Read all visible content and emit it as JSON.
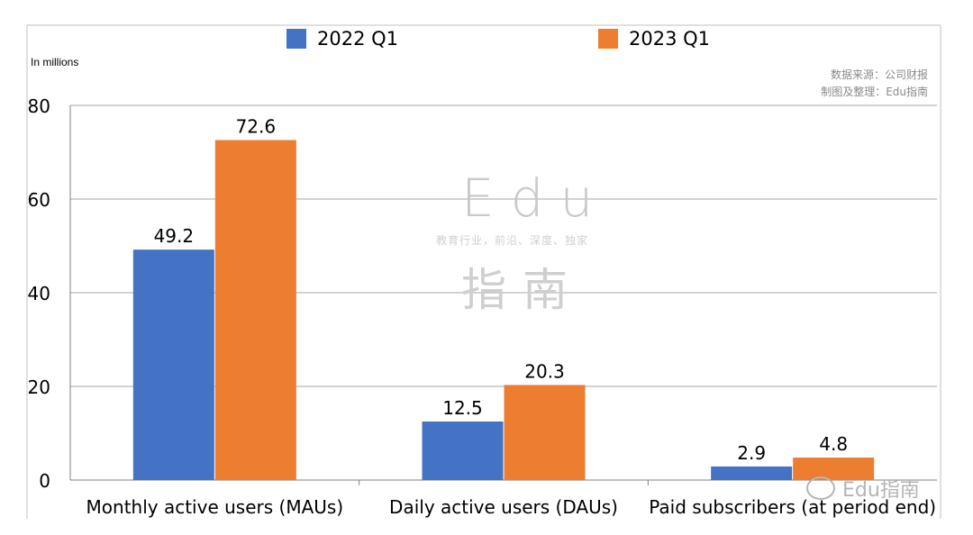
{
  "unit_label": "In millions",
  "source": {
    "line1": "数据来源：公司财报",
    "line2": "制图及整理：Edu指南"
  },
  "watermark": {
    "brand": "Edu",
    "tagline": "教育行业，前沿、深度、独家",
    "chinese": "指南",
    "corner": "Edu指南"
  },
  "legend": {
    "series1": "2022 Q1",
    "series2": "2023 Q1"
  },
  "colors": {
    "series1": "#4472c4",
    "series2": "#ed7d31",
    "grid": "#a6a6a6",
    "axis": "#808080"
  },
  "chart_data": {
    "type": "bar",
    "title": "",
    "xlabel": "",
    "ylabel": "In millions",
    "ylim": [
      0,
      80
    ],
    "yticks": [
      0,
      20,
      40,
      60,
      80
    ],
    "grid": true,
    "legend_position": "top",
    "categories": [
      "Monthly active users (MAUs)",
      "Daily active users (DAUs)",
      "Paid subscribers (at period end)"
    ],
    "series": [
      {
        "name": "2022 Q1",
        "values": [
          49.2,
          12.5,
          2.9
        ]
      },
      {
        "name": "2023 Q1",
        "values": [
          72.6,
          20.3,
          4.8
        ]
      }
    ]
  }
}
